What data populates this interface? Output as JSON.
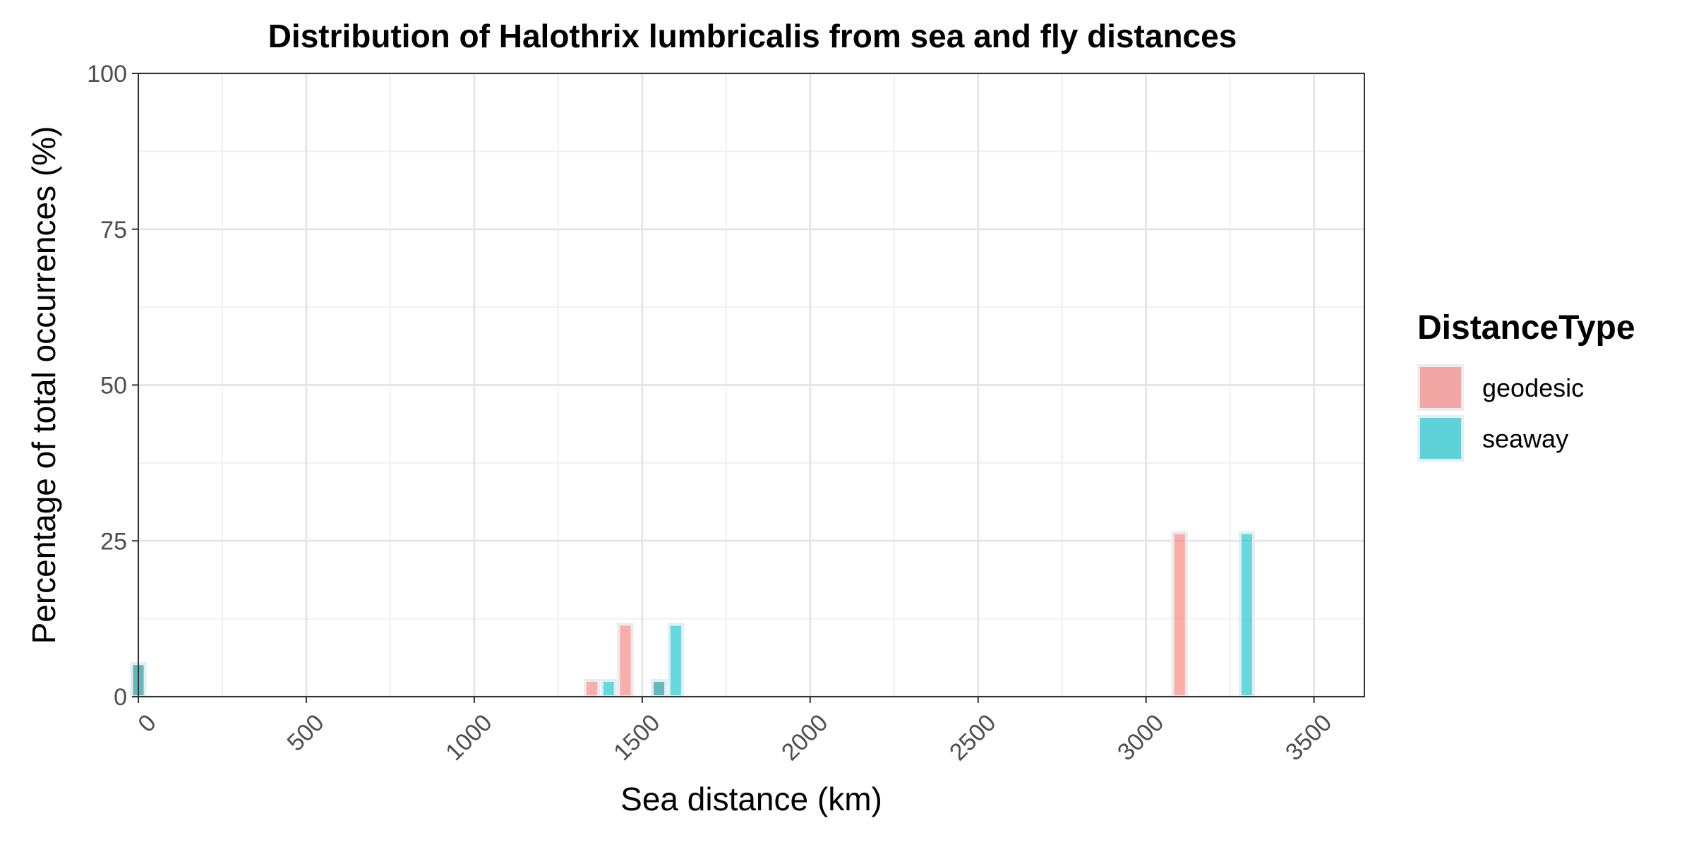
{
  "chart_data": {
    "type": "bar",
    "title": "Distribution of Halothrix lumbricalis from sea and fly distances",
    "xlabel": "Sea distance (km)",
    "ylabel": "Percentage of total occurrences (%)",
    "xlim": [
      0,
      3650
    ],
    "ylim": [
      0,
      100
    ],
    "x_ticks": [
      0,
      500,
      1000,
      1500,
      2000,
      2500,
      3000,
      3500
    ],
    "y_ticks": [
      0,
      25,
      50,
      75,
      100
    ],
    "grid": true,
    "bar_width": 40,
    "legend": {
      "title": "DistanceType",
      "position": "right"
    },
    "series": [
      {
        "name": "geodesic",
        "color": "#F8766D",
        "points": [
          {
            "x": 0,
            "y": 5.3
          },
          {
            "x": 1350,
            "y": 2.6
          },
          {
            "x": 1450,
            "y": 11.6
          },
          {
            "x": 1550,
            "y": 2.6
          },
          {
            "x": 3100,
            "y": 26.3
          }
        ]
      },
      {
        "name": "seaway",
        "color": "#00BFC4",
        "points": [
          {
            "x": 0,
            "y": 5.3
          },
          {
            "x": 1400,
            "y": 2.6
          },
          {
            "x": 1550,
            "y": 2.6
          },
          {
            "x": 1600,
            "y": 11.6
          },
          {
            "x": 3300,
            "y": 26.3
          }
        ]
      }
    ]
  }
}
